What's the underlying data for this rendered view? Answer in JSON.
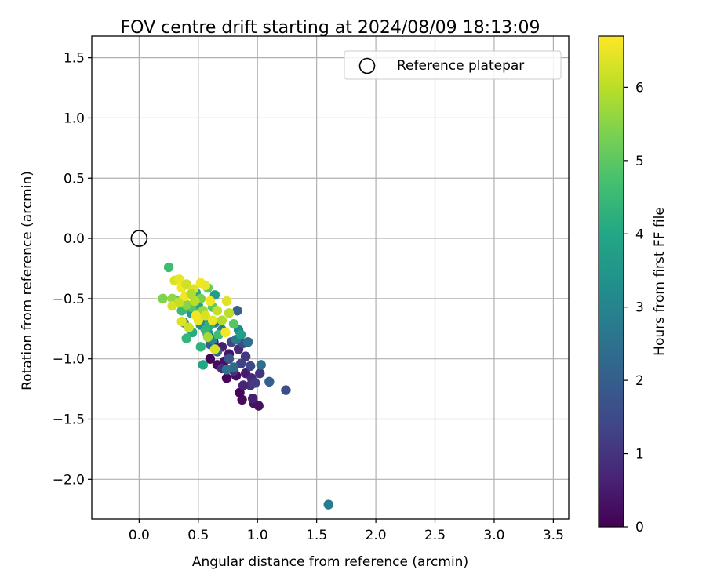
{
  "chart_data": {
    "type": "scatter",
    "title": "FOV centre drift starting at 2024/08/09 18:13:09",
    "xlabel": "Angular distance from reference (arcmin)",
    "ylabel": "Rotation from reference (arcmin)",
    "xlim": [
      -0.4,
      3.63
    ],
    "ylim": [
      -2.33,
      1.68
    ],
    "xticks": [
      "0.0",
      "0.5",
      "1.0",
      "1.5",
      "2.0",
      "2.5",
      "3.0",
      "3.5"
    ],
    "yticks": [
      "1.5",
      "1.0",
      "0.5",
      "0.0",
      "−0.5",
      "−1.0",
      "−1.5",
      "−2.0"
    ],
    "grid": true,
    "legend": {
      "placement": "top-right",
      "entries": [
        {
          "label": "Reference platepar",
          "marker": "open-circle"
        }
      ]
    },
    "reference_point": {
      "x": 0.0,
      "y": 0.0
    },
    "colorbar": {
      "label": "Hours from first FF file",
      "colormap": "viridis",
      "range": [
        0,
        6.7
      ],
      "ticks": [
        "0",
        "1",
        "2",
        "3",
        "4",
        "5",
        "6"
      ]
    },
    "points": [
      {
        "x": 0.97,
        "y": -1.37,
        "h": 0.3
      },
      {
        "x": 0.87,
        "y": -1.34,
        "h": 0.2
      },
      {
        "x": 1.01,
        "y": -1.39,
        "h": 0.3
      },
      {
        "x": 0.85,
        "y": -1.28,
        "h": 0.1
      },
      {
        "x": 0.96,
        "y": -1.33,
        "h": 0.6
      },
      {
        "x": 0.74,
        "y": -1.16,
        "h": 0.1
      },
      {
        "x": 0.82,
        "y": -1.14,
        "h": 0.2
      },
      {
        "x": 0.6,
        "y": -1.0,
        "h": 0.1
      },
      {
        "x": 0.66,
        "y": -1.05,
        "h": 0.2
      },
      {
        "x": 0.72,
        "y": -1.02,
        "h": 0.3
      },
      {
        "x": 0.9,
        "y": -1.12,
        "h": 0.5
      },
      {
        "x": 0.95,
        "y": -1.16,
        "h": 0.8
      },
      {
        "x": 0.94,
        "y": -1.22,
        "h": 1.0
      },
      {
        "x": 0.98,
        "y": -1.2,
        "h": 1.2
      },
      {
        "x": 1.02,
        "y": -1.12,
        "h": 1.0
      },
      {
        "x": 0.88,
        "y": -1.22,
        "h": 0.7
      },
      {
        "x": 0.8,
        "y": -1.1,
        "h": 0.9
      },
      {
        "x": 0.76,
        "y": -0.96,
        "h": 0.4
      },
      {
        "x": 0.7,
        "y": -0.9,
        "h": 0.6
      },
      {
        "x": 0.84,
        "y": -0.92,
        "h": 0.8
      },
      {
        "x": 0.9,
        "y": -0.98,
        "h": 1.1
      },
      {
        "x": 0.86,
        "y": -1.04,
        "h": 1.3
      },
      {
        "x": 0.94,
        "y": -1.06,
        "h": 1.5
      },
      {
        "x": 0.78,
        "y": -0.86,
        "h": 1.4
      },
      {
        "x": 0.7,
        "y": -1.08,
        "h": 0.9
      },
      {
        "x": 0.63,
        "y": -0.86,
        "h": 0.5
      },
      {
        "x": 0.58,
        "y": -0.8,
        "h": 0.3
      },
      {
        "x": 0.88,
        "y": -0.87,
        "h": 1.6
      },
      {
        "x": 1.1,
        "y": -1.19,
        "h": 2.0
      },
      {
        "x": 1.24,
        "y": -1.26,
        "h": 1.6
      },
      {
        "x": 0.83,
        "y": -0.6,
        "h": 2.1
      },
      {
        "x": 1.03,
        "y": -1.05,
        "h": 2.5
      },
      {
        "x": 0.8,
        "y": -1.07,
        "h": 2.3
      },
      {
        "x": 0.74,
        "y": -1.09,
        "h": 2.6
      },
      {
        "x": 0.76,
        "y": -1.0,
        "h": 1.8
      },
      {
        "x": 0.66,
        "y": -0.94,
        "h": 2.2
      },
      {
        "x": 0.6,
        "y": -0.88,
        "h": 2.0
      },
      {
        "x": 0.64,
        "y": -0.7,
        "h": 2.7
      },
      {
        "x": 0.7,
        "y": -0.76,
        "h": 2.9
      },
      {
        "x": 0.82,
        "y": -0.84,
        "h": 2.8
      },
      {
        "x": 0.84,
        "y": -0.76,
        "h": 3.2
      },
      {
        "x": 0.56,
        "y": -0.66,
        "h": 3.0
      },
      {
        "x": 0.52,
        "y": -0.72,
        "h": 3.3
      },
      {
        "x": 0.38,
        "y": -0.7,
        "h": 3.5
      },
      {
        "x": 0.44,
        "y": -0.62,
        "h": 3.6
      },
      {
        "x": 0.5,
        "y": -0.56,
        "h": 3.9
      },
      {
        "x": 0.48,
        "y": -0.45,
        "h": 4.0
      },
      {
        "x": 0.64,
        "y": -0.47,
        "h": 3.7
      },
      {
        "x": 0.58,
        "y": -0.78,
        "h": 3.4
      },
      {
        "x": 0.62,
        "y": -0.84,
        "h": 3.1
      },
      {
        "x": 1.6,
        "y": -2.21,
        "h": 2.8
      },
      {
        "x": 0.45,
        "y": -0.78,
        "h": 4.1
      },
      {
        "x": 0.52,
        "y": -0.9,
        "h": 4.3
      },
      {
        "x": 0.4,
        "y": -0.83,
        "h": 4.4
      },
      {
        "x": 0.54,
        "y": -1.05,
        "h": 4.0
      },
      {
        "x": 0.25,
        "y": -0.24,
        "h": 4.6
      },
      {
        "x": 0.32,
        "y": -0.52,
        "h": 4.8
      },
      {
        "x": 0.36,
        "y": -0.6,
        "h": 4.5
      },
      {
        "x": 0.44,
        "y": -0.57,
        "h": 4.9
      },
      {
        "x": 0.5,
        "y": -0.62,
        "h": 4.7
      },
      {
        "x": 0.58,
        "y": -0.41,
        "h": 5.1
      },
      {
        "x": 0.52,
        "y": -0.5,
        "h": 5.3
      },
      {
        "x": 0.62,
        "y": -0.57,
        "h": 5.0
      },
      {
        "x": 0.6,
        "y": -0.72,
        "h": 4.2
      },
      {
        "x": 0.67,
        "y": -0.8,
        "h": 4.6
      },
      {
        "x": 0.56,
        "y": -0.76,
        "h": 4.4
      },
      {
        "x": 0.2,
        "y": -0.5,
        "h": 5.4
      },
      {
        "x": 0.28,
        "y": -0.5,
        "h": 5.6
      },
      {
        "x": 0.4,
        "y": -0.55,
        "h": 5.5
      },
      {
        "x": 0.54,
        "y": -0.6,
        "h": 5.7
      },
      {
        "x": 0.3,
        "y": -0.35,
        "h": 6.3
      },
      {
        "x": 0.34,
        "y": -0.34,
        "h": 6.5
      },
      {
        "x": 0.36,
        "y": -0.41,
        "h": 6.6
      },
      {
        "x": 0.4,
        "y": -0.38,
        "h": 6.2
      },
      {
        "x": 0.46,
        "y": -0.42,
        "h": 6.4
      },
      {
        "x": 0.52,
        "y": -0.37,
        "h": 6.6
      },
      {
        "x": 0.56,
        "y": -0.39,
        "h": 6.5
      },
      {
        "x": 0.28,
        "y": -0.56,
        "h": 6.3
      },
      {
        "x": 0.34,
        "y": -0.53,
        "h": 6.1
      },
      {
        "x": 0.39,
        "y": -0.48,
        "h": 6.6
      },
      {
        "x": 0.47,
        "y": -0.52,
        "h": 6.0
      },
      {
        "x": 0.36,
        "y": -0.69,
        "h": 6.4
      },
      {
        "x": 0.42,
        "y": -0.74,
        "h": 6.2
      },
      {
        "x": 0.5,
        "y": -0.68,
        "h": 6.5
      },
      {
        "x": 0.56,
        "y": -0.64,
        "h": 6.3
      },
      {
        "x": 0.6,
        "y": -0.52,
        "h": 6.6
      },
      {
        "x": 0.66,
        "y": -0.6,
        "h": 6.1
      },
      {
        "x": 0.74,
        "y": -0.52,
        "h": 6.4
      },
      {
        "x": 0.76,
        "y": -0.62,
        "h": 6.0
      },
      {
        "x": 0.7,
        "y": -0.68,
        "h": 5.9
      },
      {
        "x": 0.62,
        "y": -0.68,
        "h": 6.5
      },
      {
        "x": 0.73,
        "y": -0.78,
        "h": 6.6
      },
      {
        "x": 0.64,
        "y": -0.92,
        "h": 6.3
      },
      {
        "x": 0.58,
        "y": -0.82,
        "h": 5.8
      },
      {
        "x": 0.48,
        "y": -0.64,
        "h": 6.6
      },
      {
        "x": 0.44,
        "y": -0.46,
        "h": 5.9
      },
      {
        "x": 0.8,
        "y": -0.71,
        "h": 4.9
      },
      {
        "x": 0.86,
        "y": -0.8,
        "h": 3.8
      },
      {
        "x": 0.92,
        "y": -0.86,
        "h": 2.4
      }
    ]
  }
}
